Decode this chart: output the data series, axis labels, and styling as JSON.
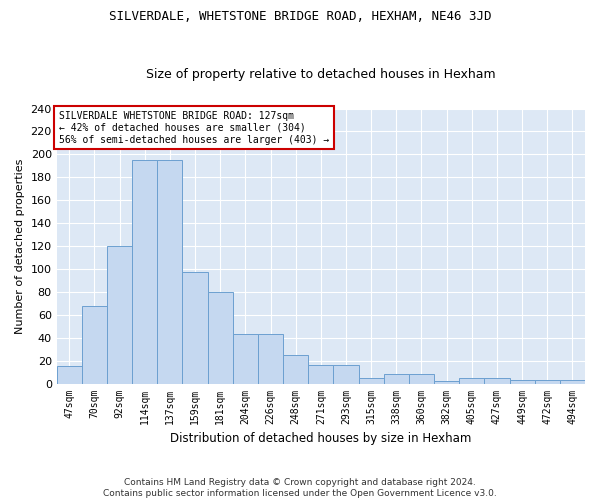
{
  "title": "SILVERDALE, WHETSTONE BRIDGE ROAD, HEXHAM, NE46 3JD",
  "subtitle": "Size of property relative to detached houses in Hexham",
  "xlabel": "Distribution of detached houses by size in Hexham",
  "ylabel": "Number of detached properties",
  "bar_color": "#c5d8f0",
  "bar_edge_color": "#6ca0d0",
  "background_color": "#dde8f5",
  "grid_color": "#ffffff",
  "categories": [
    "47sqm",
    "70sqm",
    "92sqm",
    "114sqm",
    "137sqm",
    "159sqm",
    "181sqm",
    "204sqm",
    "226sqm",
    "248sqm",
    "271sqm",
    "293sqm",
    "315sqm",
    "338sqm",
    "360sqm",
    "382sqm",
    "405sqm",
    "427sqm",
    "449sqm",
    "472sqm",
    "494sqm"
  ],
  "values": [
    15,
    68,
    120,
    195,
    195,
    97,
    80,
    43,
    43,
    25,
    16,
    16,
    5,
    8,
    8,
    2,
    5,
    5,
    3,
    3,
    3
  ],
  "annotation_text": "SILVERDALE WHETSTONE BRIDGE ROAD: 127sqm\n← 42% of detached houses are smaller (304)\n56% of semi-detached houses are larger (403) →",
  "annotation_box_color": "#ffffff",
  "annotation_box_edge": "#cc0000",
  "ylim": [
    0,
    240
  ],
  "yticks": [
    0,
    20,
    40,
    60,
    80,
    100,
    120,
    140,
    160,
    180,
    200,
    220,
    240
  ],
  "footer_line1": "Contains HM Land Registry data © Crown copyright and database right 2024.",
  "footer_line2": "Contains public sector information licensed under the Open Government Licence v3.0."
}
